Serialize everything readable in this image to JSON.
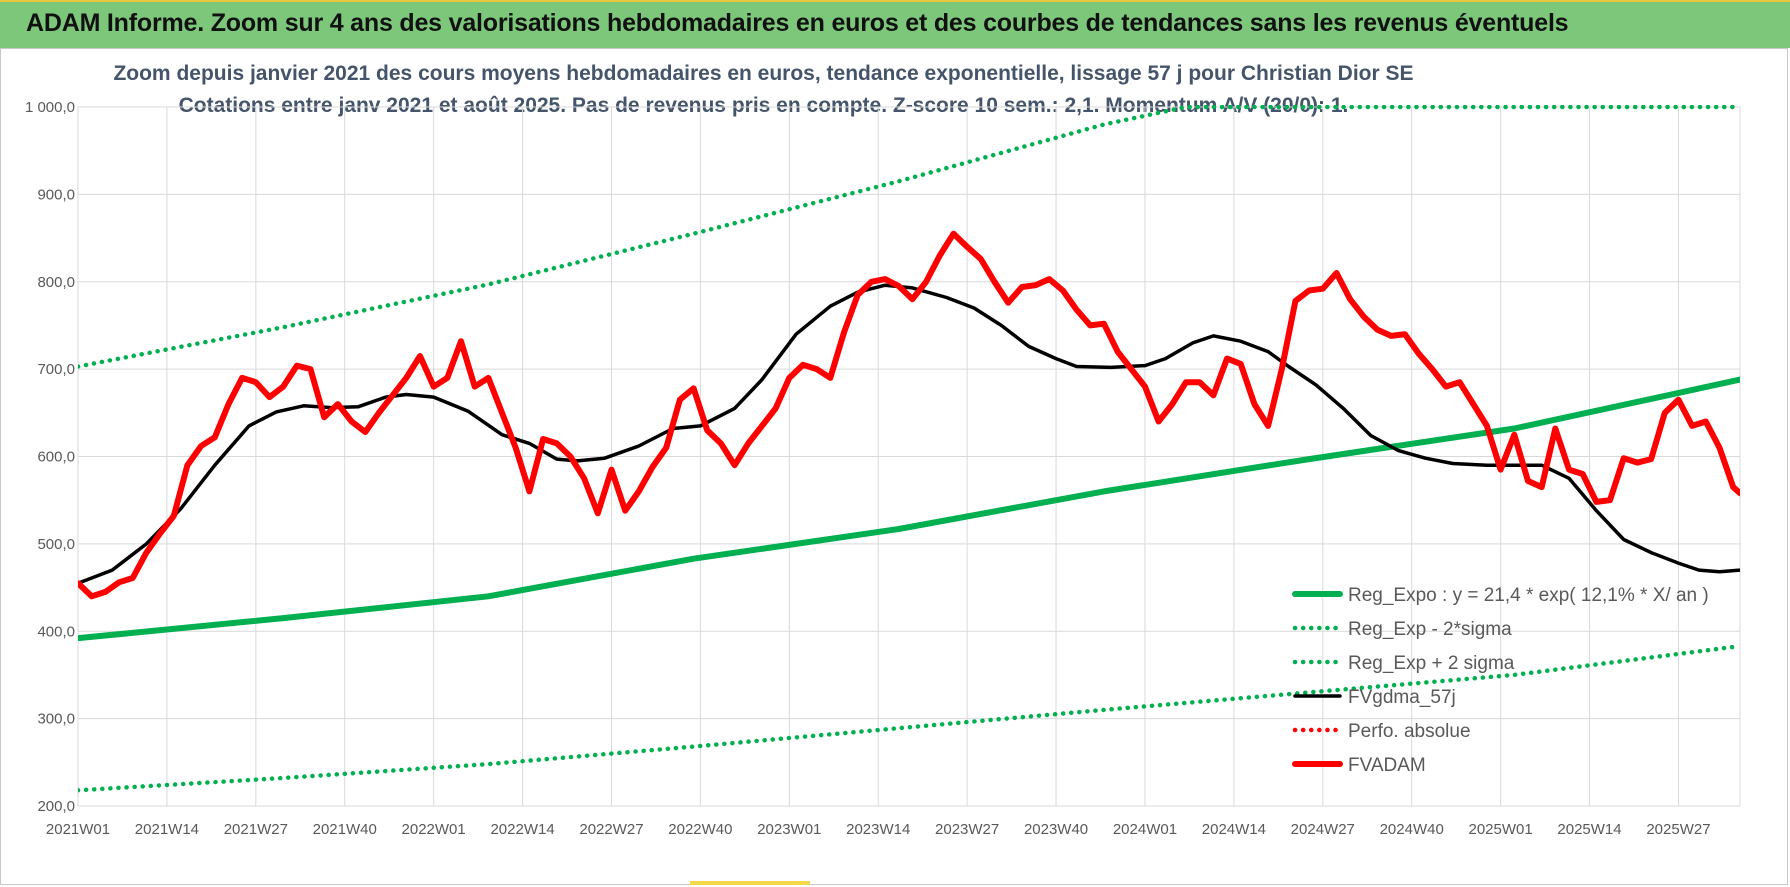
{
  "banner": {
    "title": "ADAM Informe. Zoom sur 4 ans des valorisations hebdomadaires en euros et des courbes de tendances sans les revenus éventuels"
  },
  "chart_data": {
    "type": "line",
    "title": "Zoom depuis janvier 2021 des cours moyens hebdomadaires en euros, tendance exponentielle, lissage 57 j pour Christian Dior SE",
    "subtitle": "Cotations entre janv 2021 et août 2025. Pas de revenus pris en compte. Z-score 10 sem.: 2,1. Momentum A/V (20/0): 1.",
    "xlabel": "",
    "ylabel": "",
    "ylim": [
      200,
      1000
    ],
    "yticks": [
      "1 000,0",
      "900,0",
      "800,0",
      "700,0",
      "600,0",
      "500,0",
      "400,0",
      "300,0",
      "200,0"
    ],
    "ytick_values": [
      1000,
      900,
      800,
      700,
      600,
      500,
      400,
      300,
      200
    ],
    "xlim": [
      0,
      243
    ],
    "x_tick_labels": [
      "2021W01",
      "2021W14",
      "2021W27",
      "2021W40",
      "2022W01",
      "2022W14",
      "2022W27",
      "2022W40",
      "2023W01",
      "2023W14",
      "2023W27",
      "2023W40",
      "2024W01",
      "2024W14",
      "2024W27",
      "2024W40",
      "2025W01",
      "2025W14",
      "2025W27"
    ],
    "x_tick_index": [
      0,
      13,
      26,
      39,
      52,
      65,
      78,
      91,
      104,
      117,
      130,
      143,
      156,
      169,
      182,
      195,
      208,
      221,
      234
    ],
    "grid": true,
    "legend_position": "bottom-right",
    "series": [
      {
        "name": "Reg_Expo : y = 21,4 * exp( 12,1% * X/ an )",
        "color": "#00b050",
        "style": "solid-thick",
        "points": [
          [
            0,
            392
          ],
          [
            30,
            415
          ],
          [
            60,
            440
          ],
          [
            90,
            483
          ],
          [
            120,
            517
          ],
          [
            150,
            560
          ],
          [
            180,
            597
          ],
          [
            210,
            632
          ],
          [
            243,
            688
          ]
        ]
      },
      {
        "name": "Reg_Exp - 2*sigma",
        "color": "#00b050",
        "style": "dotted",
        "points": [
          [
            0,
            218
          ],
          [
            30,
            232
          ],
          [
            60,
            248
          ],
          [
            90,
            268
          ],
          [
            120,
            289
          ],
          [
            150,
            310
          ],
          [
            180,
            330
          ],
          [
            210,
            350
          ],
          [
            243,
            383
          ]
        ]
      },
      {
        "name": "Reg_Exp + 2 sigma",
        "color": "#00b050",
        "style": "dotted",
        "points": [
          [
            0,
            703
          ],
          [
            30,
            748
          ],
          [
            60,
            797
          ],
          [
            90,
            855
          ],
          [
            120,
            915
          ],
          [
            150,
            980
          ],
          [
            162,
            1000
          ],
          [
            243,
            1000
          ]
        ]
      },
      {
        "name": "FVgdma_57j",
        "color": "#000000",
        "style": "solid",
        "points": [
          [
            0,
            455
          ],
          [
            5,
            470
          ],
          [
            10,
            500
          ],
          [
            15,
            540
          ],
          [
            20,
            590
          ],
          [
            25,
            635
          ],
          [
            29,
            651
          ],
          [
            33,
            658
          ],
          [
            37,
            656
          ],
          [
            41,
            657
          ],
          [
            45,
            668
          ],
          [
            48,
            671
          ],
          [
            52,
            668
          ],
          [
            57,
            652
          ],
          [
            62,
            625
          ],
          [
            66,
            615
          ],
          [
            70,
            597
          ],
          [
            73,
            595
          ],
          [
            77,
            598
          ],
          [
            82,
            612
          ],
          [
            87,
            632
          ],
          [
            91,
            635
          ],
          [
            96,
            655
          ],
          [
            100,
            688
          ],
          [
            105,
            740
          ],
          [
            110,
            772
          ],
          [
            114,
            788
          ],
          [
            118,
            796
          ],
          [
            122,
            793
          ],
          [
            127,
            782
          ],
          [
            131,
            770
          ],
          [
            135,
            750
          ],
          [
            139,
            726
          ],
          [
            143,
            712
          ],
          [
            146,
            703
          ],
          [
            151,
            702
          ],
          [
            156,
            704
          ],
          [
            159,
            712
          ],
          [
            163,
            730
          ],
          [
            166,
            738
          ],
          [
            170,
            732
          ],
          [
            174,
            720
          ],
          [
            177,
            703
          ],
          [
            181,
            682
          ],
          [
            185,
            655
          ],
          [
            189,
            624
          ],
          [
            193,
            607
          ],
          [
            197,
            598
          ],
          [
            201,
            592
          ],
          [
            206,
            590
          ],
          [
            210,
            590
          ],
          [
            214,
            590
          ],
          [
            218,
            575
          ],
          [
            222,
            538
          ],
          [
            226,
            505
          ],
          [
            230,
            490
          ],
          [
            234,
            478
          ],
          [
            237,
            470
          ],
          [
            240,
            468
          ],
          [
            243,
            470
          ]
        ]
      },
      {
        "name": "Perfo. absolue",
        "color": "#ff0000",
        "style": "dotted",
        "points": []
      },
      {
        "name": "FVADAM",
        "color": "#ff0000",
        "style": "solid-thick",
        "points": [
          [
            0,
            455
          ],
          [
            2,
            440
          ],
          [
            4,
            445
          ],
          [
            6,
            456
          ],
          [
            8,
            461
          ],
          [
            10,
            490
          ],
          [
            12,
            512
          ],
          [
            14,
            532
          ],
          [
            16,
            590
          ],
          [
            18,
            612
          ],
          [
            20,
            622
          ],
          [
            22,
            660
          ],
          [
            24,
            690
          ],
          [
            26,
            685
          ],
          [
            28,
            668
          ],
          [
            30,
            680
          ],
          [
            32,
            704
          ],
          [
            34,
            700
          ],
          [
            36,
            645
          ],
          [
            38,
            660
          ],
          [
            40,
            640
          ],
          [
            42,
            628
          ],
          [
            44,
            650
          ],
          [
            46,
            670
          ],
          [
            48,
            690
          ],
          [
            50,
            715
          ],
          [
            52,
            680
          ],
          [
            54,
            690
          ],
          [
            56,
            732
          ],
          [
            58,
            680
          ],
          [
            60,
            690
          ],
          [
            62,
            650
          ],
          [
            64,
            610
          ],
          [
            66,
            560
          ],
          [
            68,
            620
          ],
          [
            70,
            615
          ],
          [
            72,
            600
          ],
          [
            74,
            575
          ],
          [
            76,
            535
          ],
          [
            78,
            585
          ],
          [
            80,
            538
          ],
          [
            82,
            560
          ],
          [
            84,
            588
          ],
          [
            86,
            610
          ],
          [
            88,
            665
          ],
          [
            90,
            678
          ],
          [
            92,
            630
          ],
          [
            94,
            615
          ],
          [
            96,
            590
          ],
          [
            98,
            615
          ],
          [
            100,
            635
          ],
          [
            102,
            655
          ],
          [
            104,
            690
          ],
          [
            106,
            705
          ],
          [
            108,
            700
          ],
          [
            110,
            690
          ],
          [
            112,
            742
          ],
          [
            114,
            785
          ],
          [
            116,
            800
          ],
          [
            118,
            803
          ],
          [
            120,
            795
          ],
          [
            122,
            780
          ],
          [
            124,
            800
          ],
          [
            126,
            830
          ],
          [
            128,
            855
          ],
          [
            130,
            840
          ],
          [
            132,
            826
          ],
          [
            134,
            800
          ],
          [
            136,
            776
          ],
          [
            138,
            794
          ],
          [
            140,
            796
          ],
          [
            142,
            803
          ],
          [
            144,
            790
          ],
          [
            146,
            768
          ],
          [
            148,
            750
          ],
          [
            150,
            752
          ],
          [
            152,
            720
          ],
          [
            154,
            700
          ],
          [
            156,
            680
          ],
          [
            158,
            640
          ],
          [
            160,
            660
          ],
          [
            162,
            685
          ],
          [
            164,
            685
          ],
          [
            166,
            670
          ],
          [
            168,
            712
          ],
          [
            170,
            706
          ],
          [
            172,
            660
          ],
          [
            174,
            635
          ],
          [
            176,
            700
          ],
          [
            178,
            778
          ],
          [
            180,
            790
          ],
          [
            182,
            792
          ],
          [
            184,
            810
          ],
          [
            186,
            780
          ],
          [
            188,
            760
          ],
          [
            190,
            745
          ],
          [
            192,
            738
          ],
          [
            194,
            740
          ],
          [
            196,
            718
          ],
          [
            198,
            700
          ],
          [
            200,
            680
          ],
          [
            202,
            685
          ],
          [
            204,
            660
          ],
          [
            206,
            635
          ],
          [
            208,
            585
          ],
          [
            210,
            625
          ],
          [
            212,
            572
          ],
          [
            214,
            565
          ],
          [
            216,
            632
          ],
          [
            218,
            585
          ],
          [
            220,
            580
          ],
          [
            222,
            548
          ],
          [
            224,
            550
          ],
          [
            226,
            598
          ],
          [
            228,
            593
          ],
          [
            230,
            597
          ],
          [
            232,
            650
          ],
          [
            234,
            665
          ],
          [
            236,
            635
          ],
          [
            238,
            640
          ],
          [
            240,
            610
          ],
          [
            242,
            565
          ],
          [
            243,
            558
          ]
        ]
      }
    ]
  }
}
